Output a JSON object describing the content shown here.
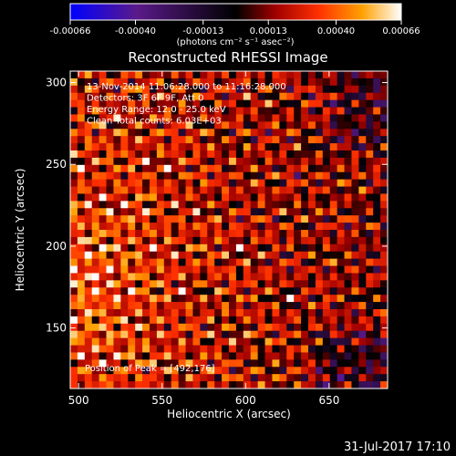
{
  "chart_data": {
    "type": "heatmap",
    "title": "Reconstructed RHESSI Image",
    "xlabel": "Heliocentric X (arcsec)",
    "ylabel": "Heliocentric Y (arcsec)",
    "xlim": [
      495,
      685
    ],
    "ylim": [
      113,
      307
    ],
    "x_ticks": [
      500,
      550,
      600,
      650
    ],
    "y_ticks": [
      150,
      200,
      250,
      300
    ],
    "colorbar": {
      "ticks": [
        "-0.00066",
        "-0.00040",
        "-0.00013",
        "0.00013",
        "0.00040",
        "0.00066"
      ],
      "tick_values": [
        -0.00066,
        -0.0004,
        -0.00013,
        0.00013,
        0.0004,
        0.00066
      ],
      "range": [
        -0.00066,
        0.00066
      ],
      "unit_label": "(photons cm⁻² s⁻¹ asec⁻²)"
    },
    "annotations": [
      "13-Nov-2014 11:06:28.000 to 11:16:28.000",
      "Detectors: 3F 6F 9F, Att 0",
      "Energy Range: 12.0 - 25.0 keV",
      "Clean     Total counts: 6.03E+03"
    ],
    "peak_label": "Position of Peak = [492,176]",
    "peak": [
      492,
      176
    ],
    "colormap": [
      "#0000ff",
      "#5a1a8a",
      "#000000",
      "#a00000",
      "#ff3000",
      "#ffa000",
      "#ffffff"
    ],
    "grid": false,
    "note_on_values": "Image pixel intensities form a fine interference-like pattern with values spanning the colorbar range; brightest emission concentrated toward the left edge near X~500, Y~176."
  },
  "footer": {
    "timestamp": "31-Jul-2017 17:10"
  }
}
